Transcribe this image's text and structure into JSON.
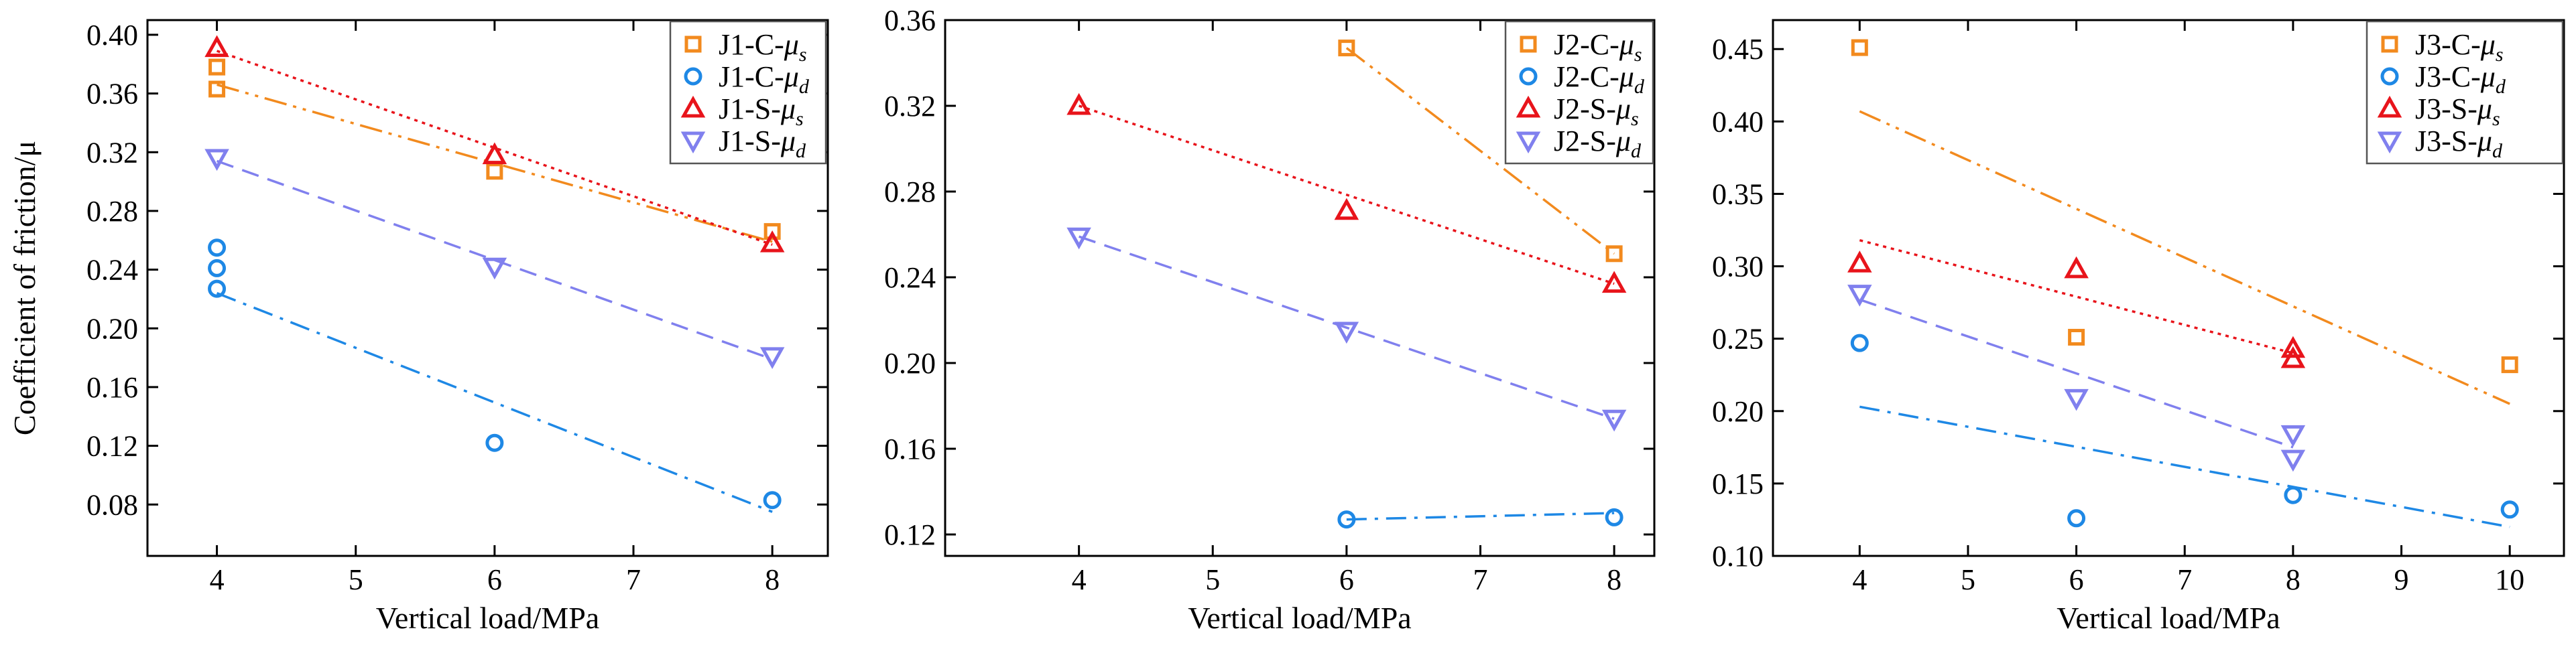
{
  "figure": {
    "description_free": true
  },
  "colors": {
    "C_s": "#f28a1e",
    "C_d": "#1e88e5",
    "S_s": "#e8141b",
    "S_d": "#8080ee"
  },
  "chart_data": [
    {
      "type": "scatter",
      "panel": "J1",
      "xlabel": "Vertical load/MPa",
      "ylabel": "Coefficient of friction/μ",
      "xlim": [
        3.5,
        8.4
      ],
      "ylim": [
        0.045,
        0.41
      ],
      "xticks": [
        "4",
        "5",
        "6",
        "7",
        "8"
      ],
      "xtick_values": [
        4,
        5,
        6,
        7,
        8
      ],
      "yticks": [
        "0.08",
        "0.12",
        "0.16",
        "0.20",
        "0.24",
        "0.28",
        "0.32",
        "0.36",
        "0.40"
      ],
      "ytick_values": [
        0.08,
        0.12,
        0.16,
        0.2,
        0.24,
        0.28,
        0.32,
        0.36,
        0.4
      ],
      "legend_position": "top-right",
      "series": [
        {
          "name": "J1-C-",
          "sym": "μ",
          "sub": "s",
          "marker": "square",
          "color_key": "C_s",
          "line": "dashdotdot",
          "points": [
            [
              4,
              0.378
            ],
            [
              4,
              0.363
            ],
            [
              6,
              0.307
            ],
            [
              8,
              0.266
            ]
          ],
          "fit": [
            [
              4,
              0.366
            ],
            [
              8,
              0.259
            ]
          ]
        },
        {
          "name": "J1-C-",
          "sym": "μ",
          "sub": "d",
          "marker": "circle",
          "color_key": "C_d",
          "line": "dashdot",
          "points": [
            [
              4,
              0.255
            ],
            [
              4,
              0.241
            ],
            [
              4,
              0.227
            ],
            [
              6,
              0.122
            ],
            [
              8,
              0.083
            ]
          ],
          "fit": [
            [
              4,
              0.224
            ],
            [
              8,
              0.075
            ]
          ]
        },
        {
          "name": "J1-S-",
          "sym": "μ",
          "sub": "s",
          "marker": "triangle-up",
          "color_key": "S_s",
          "line": "dotted",
          "points": [
            [
              4,
              0.391
            ],
            [
              6,
              0.318
            ],
            [
              8,
              0.258
            ]
          ],
          "fit": [
            [
              4,
              0.389
            ],
            [
              8,
              0.257
            ]
          ]
        },
        {
          "name": "J1-S-",
          "sym": "μ",
          "sub": "d",
          "marker": "triangle-down",
          "color_key": "S_d",
          "line": "dashed",
          "points": [
            [
              4,
              0.316
            ],
            [
              6,
              0.242
            ],
            [
              8,
              0.181
            ]
          ],
          "fit": [
            [
              4,
              0.314
            ],
            [
              8,
              0.179
            ]
          ]
        }
      ]
    },
    {
      "type": "scatter",
      "panel": "J2",
      "xlabel": "Vertical load/MPa",
      "ylabel": "",
      "xlim": [
        3.0,
        8.3
      ],
      "ylim": [
        0.11,
        0.36
      ],
      "xticks": [
        "4",
        "5",
        "6",
        "7",
        "8"
      ],
      "xtick_values": [
        4,
        5,
        6,
        7,
        8
      ],
      "yticks": [
        "0.12",
        "0.16",
        "0.20",
        "0.24",
        "0.28",
        "0.32",
        "0.36"
      ],
      "ytick_values": [
        0.12,
        0.16,
        0.2,
        0.24,
        0.28,
        0.32,
        0.36
      ],
      "legend_position": "top-right",
      "series": [
        {
          "name": "J2-C-",
          "sym": "μ",
          "sub": "s",
          "marker": "square",
          "color_key": "C_s",
          "line": "dashdotdot",
          "points": [
            [
              6,
              0.347
            ],
            [
              8,
              0.251
            ]
          ],
          "fit": [
            [
              6,
              0.347
            ],
            [
              8,
              0.251
            ]
          ]
        },
        {
          "name": "J2-C-",
          "sym": "μ",
          "sub": "d",
          "marker": "circle",
          "color_key": "C_d",
          "line": "dashdot",
          "points": [
            [
              6,
              0.127
            ],
            [
              8,
              0.128
            ]
          ],
          "fit": [
            [
              6,
              0.127
            ],
            [
              8,
              0.13
            ]
          ]
        },
        {
          "name": "J2-S-",
          "sym": "μ",
          "sub": "s",
          "marker": "triangle-up",
          "color_key": "S_s",
          "line": "dotted",
          "points": [
            [
              4,
              0.32
            ],
            [
              6,
              0.271
            ],
            [
              8,
              0.237
            ]
          ],
          "fit": [
            [
              4,
              0.32
            ],
            [
              8,
              0.237
            ]
          ]
        },
        {
          "name": "J2-S-",
          "sym": "μ",
          "sub": "d",
          "marker": "triangle-down",
          "color_key": "S_d",
          "line": "dashed",
          "points": [
            [
              4,
              0.259
            ],
            [
              6,
              0.215
            ],
            [
              8,
              0.174
            ]
          ],
          "fit": [
            [
              4,
              0.259
            ],
            [
              8,
              0.174
            ]
          ]
        }
      ]
    },
    {
      "type": "scatter",
      "panel": "J3",
      "xlabel": "Vertical load/MPa",
      "ylabel": "",
      "xlim": [
        3.2,
        10.5
      ],
      "ylim": [
        0.1,
        0.47
      ],
      "xticks": [
        "4",
        "5",
        "6",
        "7",
        "8",
        "9",
        "10"
      ],
      "xtick_values": [
        4,
        5,
        6,
        7,
        8,
        9,
        10
      ],
      "yticks": [
        "0.10",
        "0.15",
        "0.20",
        "0.25",
        "0.30",
        "0.35",
        "0.40",
        "0.45"
      ],
      "ytick_values": [
        0.1,
        0.15,
        0.2,
        0.25,
        0.3,
        0.35,
        0.4,
        0.45
      ],
      "legend_position": "top-right",
      "series": [
        {
          "name": "J3-C-",
          "sym": "μ",
          "sub": "s",
          "marker": "square",
          "color_key": "C_s",
          "line": "dashdotdot",
          "points": [
            [
              4,
              0.451
            ],
            [
              6,
              0.251
            ],
            [
              10,
              0.232
            ]
          ],
          "fit": [
            [
              4,
              0.407
            ],
            [
              10,
              0.205
            ]
          ]
        },
        {
          "name": "J3-C-",
          "sym": "μ",
          "sub": "d",
          "marker": "circle",
          "color_key": "C_d",
          "line": "dashdot",
          "points": [
            [
              4,
              0.247
            ],
            [
              6,
              0.126
            ],
            [
              8,
              0.142
            ],
            [
              10,
              0.132
            ]
          ],
          "fit": [
            [
              4,
              0.203
            ],
            [
              10,
              0.12
            ]
          ]
        },
        {
          "name": "J3-S-",
          "sym": "μ",
          "sub": "s",
          "marker": "triangle-up",
          "color_key": "S_s",
          "line": "dotted",
          "points": [
            [
              4,
              0.302
            ],
            [
              6,
              0.298
            ],
            [
              8,
              0.243
            ],
            [
              8,
              0.236
            ]
          ],
          "fit": [
            [
              4,
              0.318
            ],
            [
              8,
              0.24
            ]
          ]
        },
        {
          "name": "J3-S-",
          "sym": "μ",
          "sub": "d",
          "marker": "triangle-down",
          "color_key": "S_d",
          "line": "dashed",
          "points": [
            [
              4,
              0.281
            ],
            [
              6,
              0.209
            ],
            [
              8,
              0.184
            ],
            [
              8,
              0.167
            ]
          ],
          "fit": [
            [
              4,
              0.277
            ],
            [
              8,
              0.175
            ]
          ]
        }
      ]
    }
  ]
}
